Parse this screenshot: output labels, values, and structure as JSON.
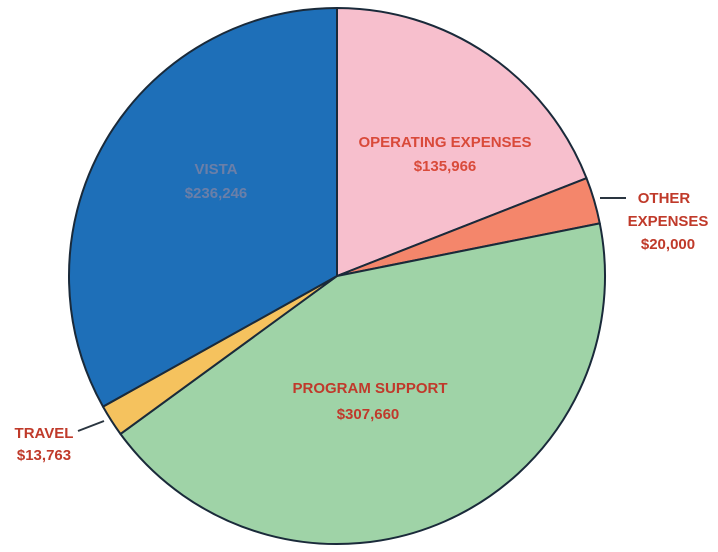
{
  "chart_data": {
    "type": "pie",
    "title": "",
    "slices": [
      {
        "label": "OPERATING EXPENSES",
        "value_label": "$135,966",
        "value": 135966,
        "color": "#f7bfcd"
      },
      {
        "label": "OTHER EXPENSES",
        "value_label": "$20,000",
        "value": 20000,
        "color": "#f4866b"
      },
      {
        "label": "PROGRAM SUPPORT",
        "value_label": "$307,660",
        "value": 307660,
        "color": "#9fd3a7"
      },
      {
        "label": "TRAVEL",
        "value_label": "$13,763",
        "value": 13763,
        "color": "#f5c25e"
      },
      {
        "label": "VISTA",
        "value_label": "$236,246",
        "value": 236246,
        "color": "#1e6fb8"
      }
    ],
    "start": "12 o'clock",
    "direction": "clockwise",
    "edge_color": "#1a2a3a",
    "legend": "none"
  }
}
